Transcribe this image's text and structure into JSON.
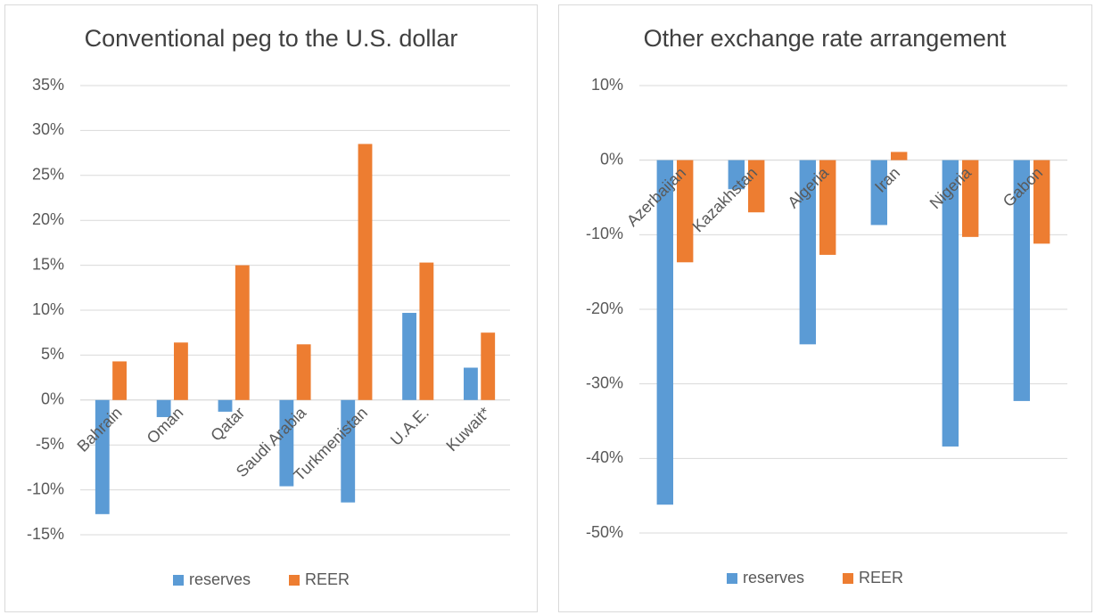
{
  "chart_data": [
    {
      "type": "bar",
      "title": "Conventional peg to the U.S. dollar",
      "categories": [
        "Bahrain",
        "Oman",
        "Qatar",
        "Saudi Arabia",
        "Turkmenistan",
        "U.A.E.",
        "Kuwait*"
      ],
      "series": [
        {
          "name": "reserves",
          "color": "#5b9bd5",
          "values": [
            -12.7,
            -1.9,
            -1.3,
            -9.6,
            -11.4,
            9.7,
            3.6
          ]
        },
        {
          "name": "REER",
          "color": "#ed7d31",
          "values": [
            4.3,
            6.4,
            15.0,
            6.2,
            28.5,
            15.3,
            7.5
          ]
        }
      ],
      "ylim": [
        -15,
        35
      ],
      "yticks": [
        {
          "value": -15,
          "label": "-15%"
        },
        {
          "value": -10,
          "label": "-10%"
        },
        {
          "value": -5,
          "label": "-5%"
        },
        {
          "value": 0,
          "label": "0%"
        },
        {
          "value": 5,
          "label": "5%"
        },
        {
          "value": 10,
          "label": "10%"
        },
        {
          "value": 15,
          "label": "15%"
        },
        {
          "value": 20,
          "label": "20%"
        },
        {
          "value": 25,
          "label": "25%"
        },
        {
          "value": 30,
          "label": "30%"
        },
        {
          "value": 35,
          "label": "35%"
        }
      ],
      "grid": true,
      "legend": "bottom"
    },
    {
      "type": "bar",
      "title": "Other exchange rate arrangement",
      "categories": [
        "Azerbaijan",
        "Kazakhstan",
        "Algeria",
        "Iran",
        "Nigeria",
        "Gabon"
      ],
      "series": [
        {
          "name": "reserves",
          "color": "#5b9bd5",
          "values": [
            -46.2,
            -3.9,
            -24.7,
            -8.7,
            -38.4,
            -32.3
          ]
        },
        {
          "name": "REER",
          "color": "#ed7d31",
          "values": [
            -13.7,
            -7.0,
            -12.7,
            1.1,
            -10.3,
            -11.2
          ]
        }
      ],
      "ylim": [
        -50,
        10
      ],
      "yticks": [
        {
          "value": -50,
          "label": "-50%"
        },
        {
          "value": -40,
          "label": "-40%"
        },
        {
          "value": -30,
          "label": "-30%"
        },
        {
          "value": -20,
          "label": "-20%"
        },
        {
          "value": -10,
          "label": "-10%"
        },
        {
          "value": 0,
          "label": "0%"
        },
        {
          "value": 10,
          "label": "10%"
        }
      ],
      "grid": true,
      "legend": "bottom"
    }
  ]
}
